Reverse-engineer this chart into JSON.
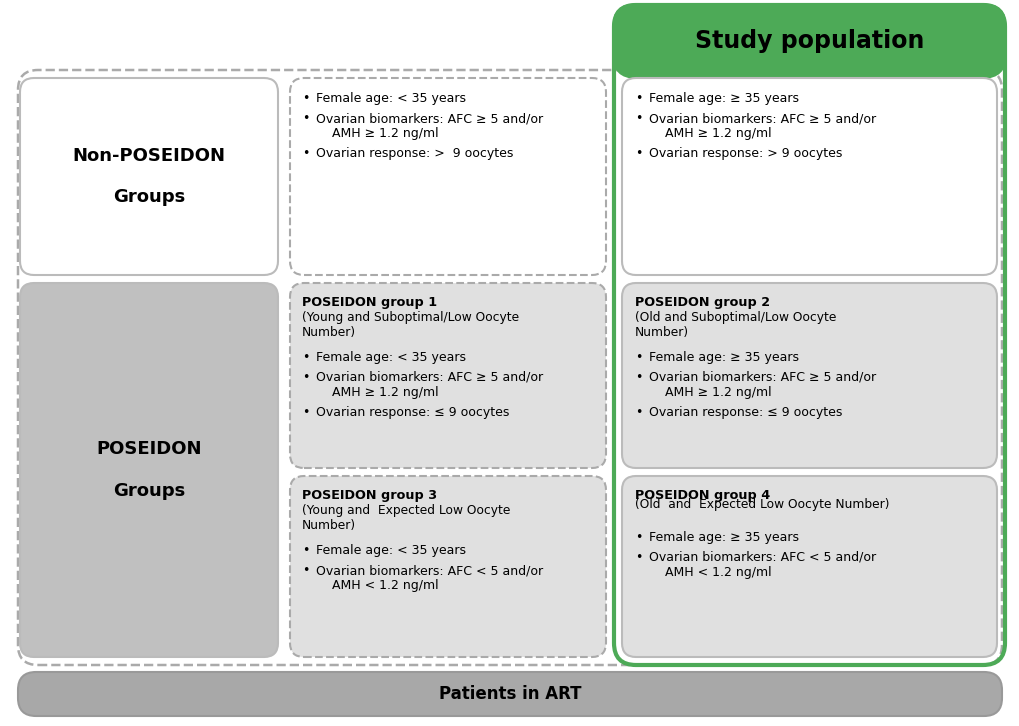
{
  "title": "Study population",
  "title_bg": "#4daa57",
  "title_fg": "#111111",
  "bottom_bar_text": "Patients in ART",
  "bottom_bar_bg": "#a8a8a8",
  "non_poseidon_label": "Non-POSEIDON\n\nGroups",
  "poseidon_label": "POSEIDON\n\nGroups",
  "np_young_bullets": [
    "Female age: < 35 years",
    "Ovarian biomarkers: AFC ≥ 5 and/or\n    AMH ≥ 1.2 ng/ml",
    "Ovarian response: >  9 oocytes"
  ],
  "np_old_bullets": [
    "Female age: ≥ 35 years",
    "Ovarian biomarkers: AFC ≥ 5 and/or\n    AMH ≥ 1.2 ng/ml",
    "Ovarian response: > 9 oocytes"
  ],
  "group1_title": "POSEIDON group 1",
  "group1_subtitle": "(Young and Suboptimal/Low Oocyte\nNumber)",
  "group1_bullets": [
    "Female age: < 35 years",
    "Ovarian biomarkers: AFC ≥ 5 and/or\n    AMH ≥ 1.2 ng/ml",
    "Ovarian response: ≤ 9 oocytes"
  ],
  "group2_title": "POSEIDON group 2",
  "group2_subtitle": "(Old and Suboptimal/Low Oocyte\nNumber)",
  "group2_bullets": [
    "Female age: ≥ 35 years",
    "Ovarian biomarkers: AFC ≥ 5 and/or\n    AMH ≥ 1.2 ng/ml",
    "Ovarian response: ≤ 9 oocytes"
  ],
  "group3_title": "POSEIDON group 3",
  "group3_subtitle": "(Young and  Expected Low Oocyte\nNumber)",
  "group3_bullets": [
    "Female age: < 35 years",
    "Ovarian biomarkers: AFC < 5 and/or\n    AMH < 1.2 ng/ml"
  ],
  "group4_title": "POSEIDON group 4",
  "group4_subtitle": "(Old  and  Expected Low Oocyte Number)",
  "group4_bullets": [
    "Female age: ≥ 35 years",
    "Ovarian biomarkers: AFC < 5 and/or\n    AMH < 1.2 ng/ml"
  ],
  "green_color": "#4daa57",
  "gray_dark": "#c0c0c0",
  "gray_light": "#e0e0e0",
  "white": "#ffffff",
  "border_gray": "#999999",
  "border_dashed": "#aaaaaa"
}
